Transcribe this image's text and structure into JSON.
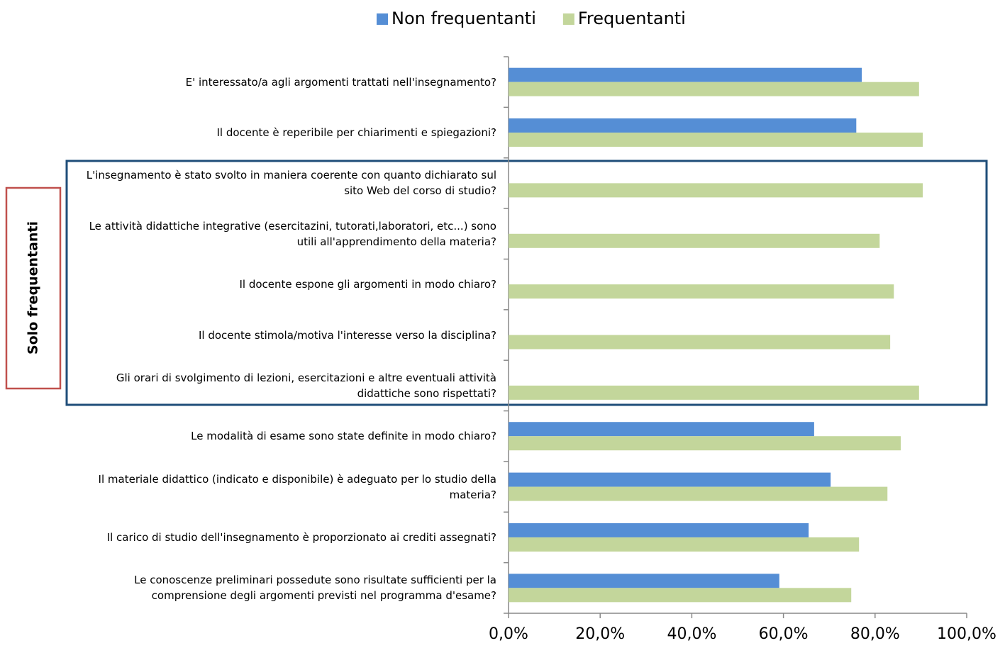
{
  "chart_data": {
    "type": "hbar",
    "categories": [
      "E' interessato/a agli argomenti trattati nell'insegnamento?",
      "Il docente è reperibile per chiarimenti e spiegazioni?",
      "L'insegnamento è stato svolto in maniera coerente con quanto dichiarato sul sito Web del corso di studio?",
      "Le attività didattiche integrative (esercitazini, tutorati,laboratori, etc...) sono utili all'apprendimento della materia?",
      "Il docente espone gli argomenti in modo chiaro?",
      "Il docente stimola/motiva l'interesse verso la disciplina?",
      "Gli orari di svolgimento di lezioni, esercitazioni e altre eventuali attività didattiche sono rispettati?",
      "Le modalità di esame sono state definite in modo chiaro?",
      "Il materiale didattico (indicato e disponibile) è adeguato per lo studio della materia?",
      "Il carico di studio dell'insegnamento è proporzionato ai crediti assegnati?",
      "Le conoscenze preliminari possedute sono risultate sufficienti per la comprensione degli argomenti previsti nel programma d'esame?"
    ],
    "series": [
      {
        "name": "Non frequentanti",
        "color": "#558ed5",
        "values": [
          77.1,
          75.9,
          null,
          null,
          null,
          null,
          null,
          66.7,
          70.3,
          65.5,
          59.1
        ]
      },
      {
        "name": "Frequentanti",
        "color": "#c3d69b",
        "values": [
          89.6,
          90.4,
          90.4,
          81.0,
          84.1,
          83.3,
          89.6,
          85.6,
          82.7,
          76.5,
          74.8
        ]
      }
    ],
    "xlim": [
      0,
      100
    ],
    "xticks": [
      {
        "value": 0,
        "label": "0,0%"
      },
      {
        "value": 20,
        "label": "20,0%"
      },
      {
        "value": 40,
        "label": "40,0%"
      },
      {
        "value": 60,
        "label": "60,0%"
      },
      {
        "value": 80,
        "label": "80,0%"
      },
      {
        "value": 100,
        "label": "100,0%"
      }
    ],
    "legend": "top",
    "annotation": "Solo frequentanti"
  }
}
